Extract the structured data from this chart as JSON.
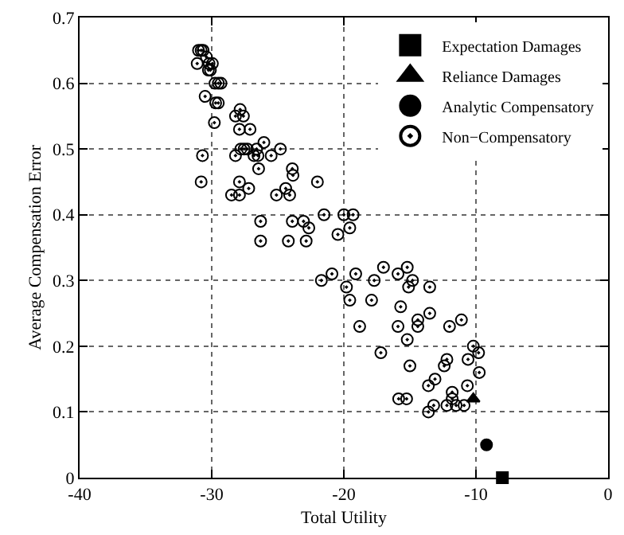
{
  "chart_data": {
    "type": "scatter",
    "xlabel": "Total Utility",
    "ylabel": "Average Compensation Error",
    "xlim": [
      -40,
      0
    ],
    "xticks": [
      -40,
      -30,
      -20,
      -10,
      0
    ],
    "ylim": [
      0,
      0.7
    ],
    "yticks": [
      0,
      0.1,
      0.2,
      0.3,
      0.4,
      0.5,
      0.6,
      0.7
    ],
    "grid": true,
    "legend": "top right",
    "series": [
      {
        "name": "Expectation Damages",
        "color": "#000000",
        "marker": "square",
        "x": [
          -8.0
        ],
        "values": [
          0.0
        ]
      },
      {
        "name": "Reliance Damages",
        "color": "#000000",
        "marker": "triangle",
        "x": [
          -10.2
        ],
        "values": [
          0.12
        ]
      },
      {
        "name": "Analytic Compensatory",
        "color": "#000000",
        "marker": "circle",
        "x": [
          -9.2
        ],
        "values": [
          0.05
        ]
      },
      {
        "name": "Non−Compensatory",
        "color": "#000000",
        "marker": "circle-open",
        "x": [
          -31.0,
          -30.65,
          -30.8,
          -31.1,
          -30.4,
          -30.2,
          -29.95,
          -30.25,
          -30.1,
          -29.75,
          -29.5,
          -29.3,
          -30.5,
          -29.7,
          -29.5,
          -29.8,
          -30.7,
          -30.8,
          -27.85,
          -27.6,
          -28.2,
          -27.9,
          -27.1,
          -27.8,
          -27.3,
          -27.55,
          -26.6,
          -26.05,
          -24.8,
          -26.5,
          -28.2,
          -26.8,
          -25.5,
          -26.45,
          -23.9,
          -23.85,
          -22.0,
          -27.9,
          -28.5,
          -27.9,
          -27.2,
          -24.4,
          -25.1,
          -24.1,
          -26.3,
          -23.9,
          -23.05,
          -22.65,
          -26.3,
          -24.2,
          -22.85,
          -21.5,
          -20.0,
          -19.3,
          -20.45,
          -19.55,
          -21.7,
          -20.9,
          -19.8,
          -19.55,
          -19.1,
          -17.7,
          -17.9,
          -17.0,
          -15.9,
          -15.2,
          -15.1,
          -14.8,
          -13.5,
          -15.7,
          -14.4,
          -14.4,
          -15.9,
          -18.8,
          -13.5,
          -12.0,
          -11.1,
          -15.2,
          -17.2,
          -10.2,
          -9.8,
          -10.6,
          -12.2,
          -12.4,
          -15.0,
          -9.75,
          -13.1,
          -13.6,
          -10.65,
          -11.8,
          -11.8,
          -15.85,
          -15.25,
          -13.2,
          -12.2,
          -11.5,
          -10.9,
          -13.6
        ],
        "values": [
          0.65,
          0.65,
          0.65,
          0.63,
          0.64,
          0.63,
          0.63,
          0.62,
          0.62,
          0.6,
          0.6,
          0.6,
          0.58,
          0.57,
          0.57,
          0.54,
          0.49,
          0.45,
          0.56,
          0.55,
          0.55,
          0.53,
          0.53,
          0.5,
          0.5,
          0.5,
          0.5,
          0.51,
          0.5,
          0.49,
          0.49,
          0.49,
          0.49,
          0.47,
          0.47,
          0.46,
          0.45,
          0.45,
          0.43,
          0.43,
          0.44,
          0.44,
          0.43,
          0.43,
          0.39,
          0.39,
          0.39,
          0.38,
          0.36,
          0.36,
          0.36,
          0.4,
          0.4,
          0.4,
          0.37,
          0.38,
          0.3,
          0.31,
          0.29,
          0.27,
          0.31,
          0.3,
          0.27,
          0.32,
          0.31,
          0.32,
          0.29,
          0.3,
          0.29,
          0.26,
          0.24,
          0.23,
          0.23,
          0.23,
          0.25,
          0.23,
          0.24,
          0.21,
          0.19,
          0.2,
          0.19,
          0.18,
          0.18,
          0.17,
          0.17,
          0.16,
          0.15,
          0.14,
          0.14,
          0.13,
          0.12,
          0.12,
          0.12,
          0.11,
          0.11,
          0.11,
          0.11,
          0.1
        ]
      }
    ]
  }
}
